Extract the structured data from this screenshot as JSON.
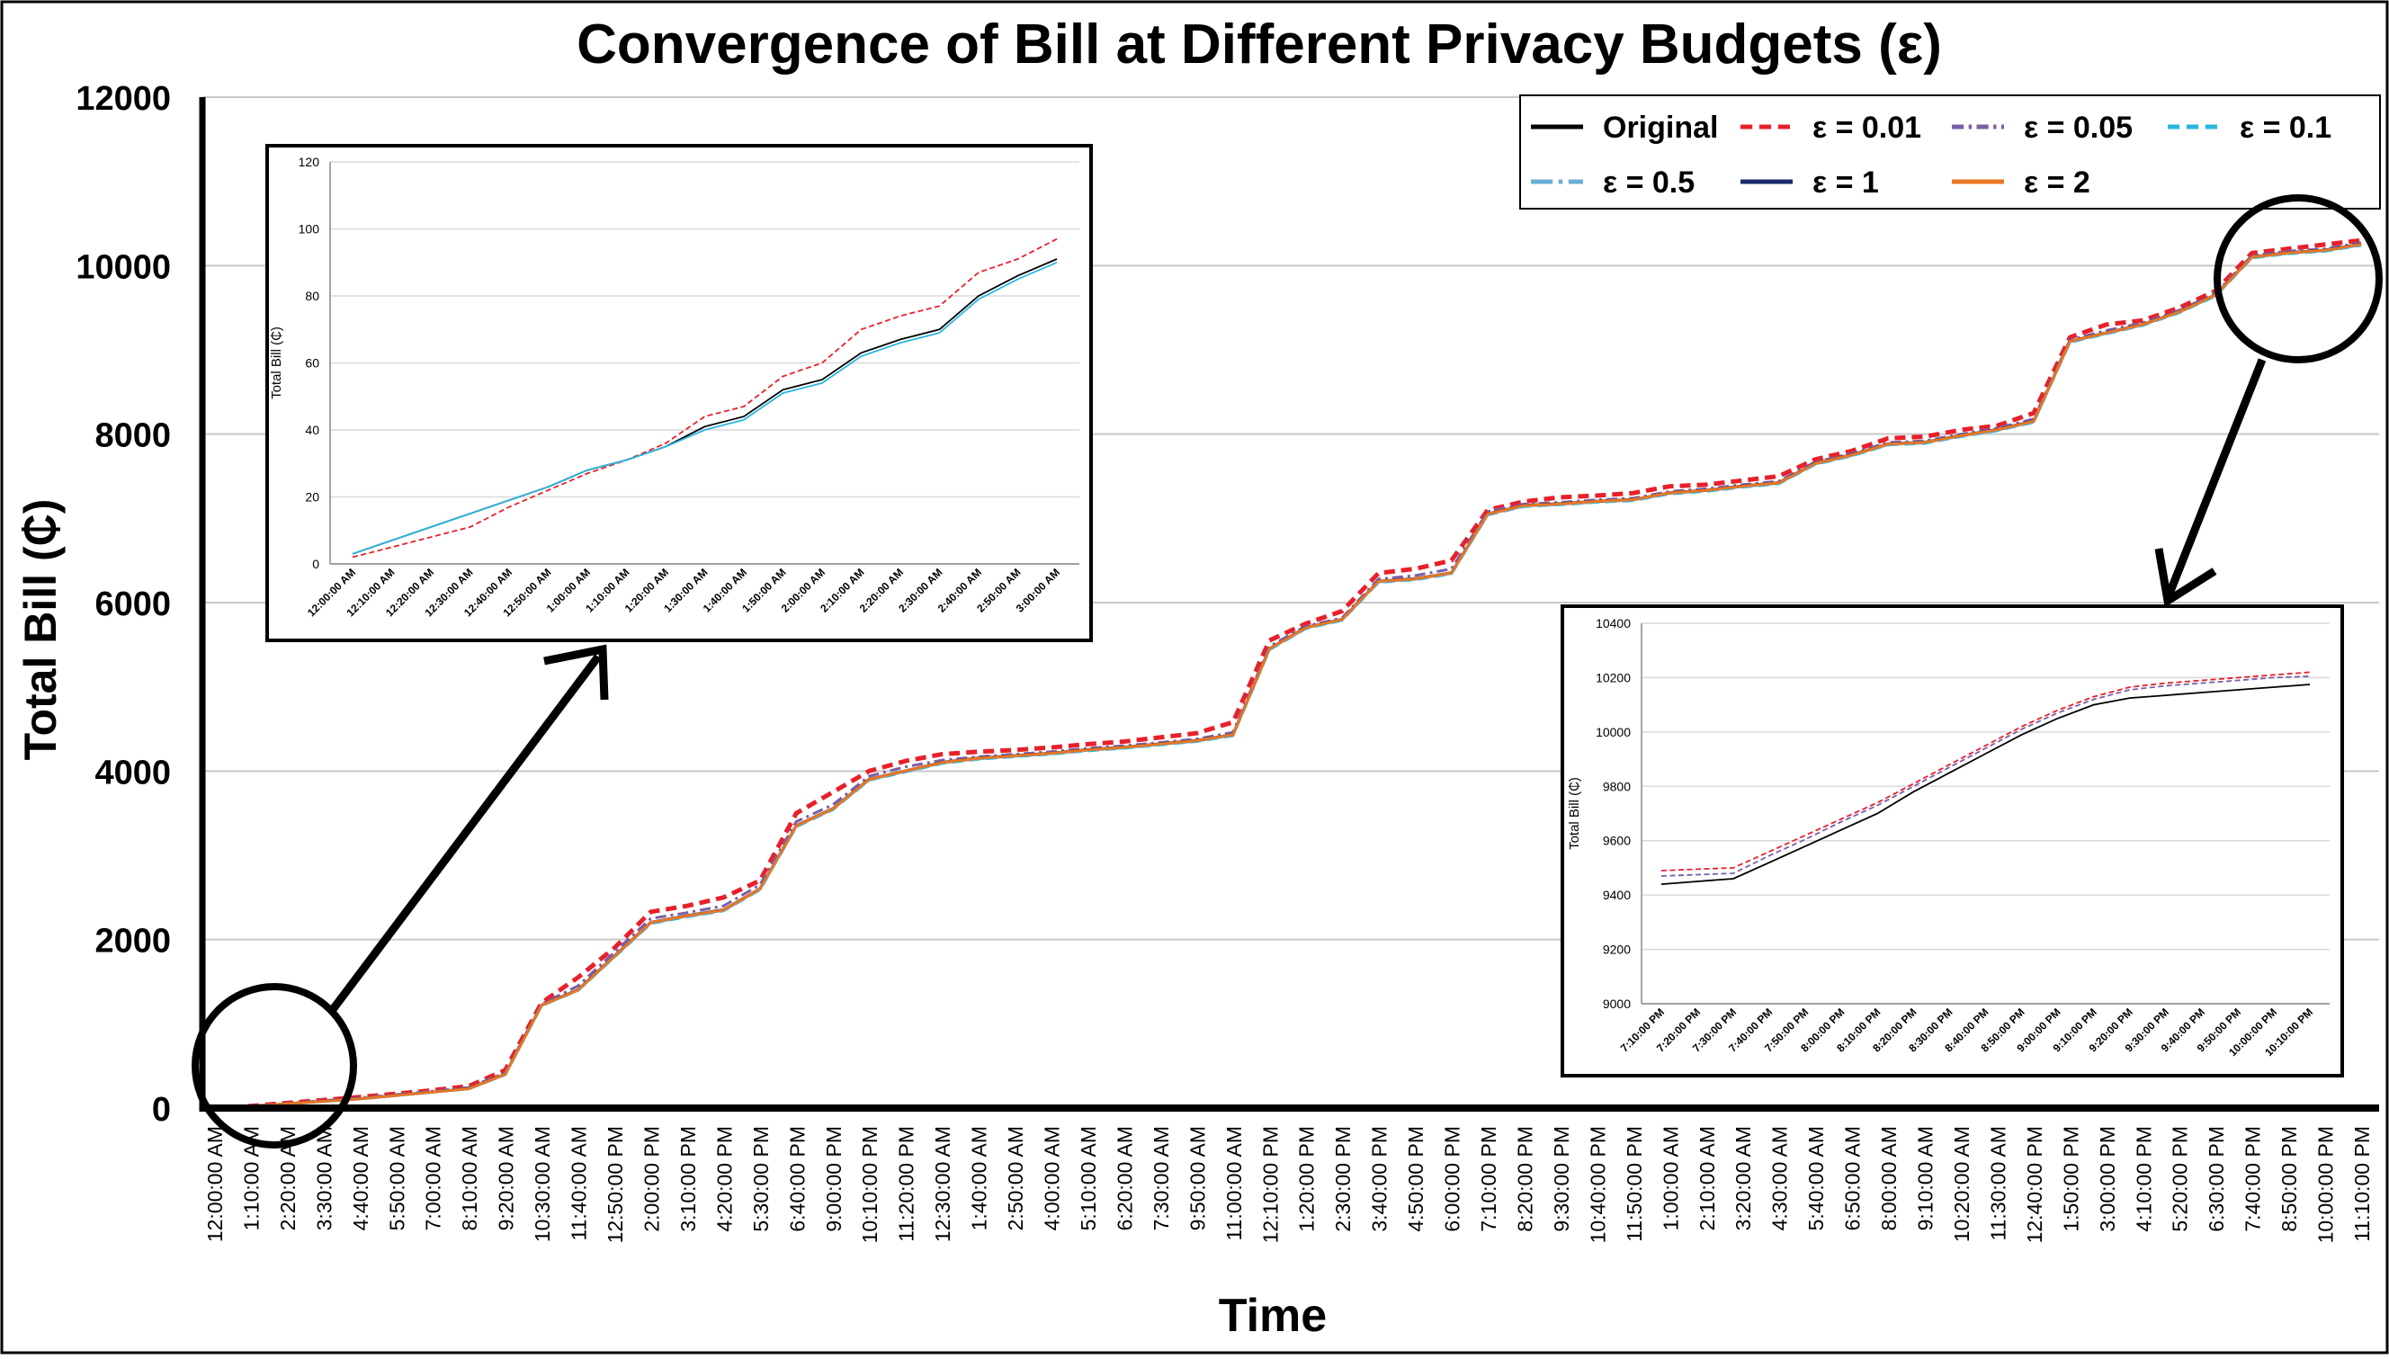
{
  "chart_data": {
    "type": "line",
    "title": "Convergence of Bill at Different Privacy Budgets (ε)",
    "xlabel": "Time",
    "ylabel": "Total Bill (₵)",
    "ylim": [
      0,
      12000
    ],
    "yticks": [
      0,
      2000,
      4000,
      6000,
      8000,
      10000,
      12000
    ],
    "grid": true,
    "legend_position": "top-right",
    "x": [
      "12:00:00 AM",
      "1:10:00 AM",
      "2:20:00 AM",
      "3:30:00 AM",
      "4:40:00 AM",
      "5:50:00 AM",
      "7:00:00 AM",
      "8:10:00 AM",
      "9:20:00 AM",
      "10:30:00 AM",
      "11:40:00 AM",
      "12:50:00 PM",
      "2:00:00 PM",
      "3:10:00 PM",
      "4:20:00 PM",
      "5:30:00 PM",
      "6:40:00 PM",
      "9:00:00 PM",
      "10:10:00 PM",
      "11:20:00 PM",
      "12:30:00 AM",
      "1:40:00 AM",
      "2:50:00 AM",
      "4:00:00 AM",
      "5:10:00 AM",
      "6:20:00 AM",
      "7:30:00 AM",
      "9:50:00 AM",
      "11:00:00 AM",
      "12:10:00 PM",
      "1:20:00 PM",
      "2:30:00 PM",
      "3:40:00 PM",
      "4:50:00 PM",
      "6:00:00 PM",
      "7:10:00 PM",
      "8:20:00 PM",
      "9:30:00 PM",
      "10:40:00 PM",
      "11:50:00 PM",
      "1:00:00 AM",
      "2:10:00 AM",
      "3:20:00 AM",
      "4:30:00 AM",
      "5:40:00 AM",
      "6:50:00 AM",
      "8:00:00 AM",
      "9:10:00 AM",
      "10:20:00 AM",
      "11:30:00 AM",
      "12:40:00 PM",
      "1:50:00 PM",
      "3:00:00 PM",
      "4:10:00 PM",
      "5:20:00 PM",
      "6:30:00 PM",
      "7:40:00 PM",
      "8:50:00 PM",
      "10:00:00 PM",
      "11:10:00 PM"
    ],
    "series": [
      {
        "name": "Original",
        "color": "#000000",
        "dash": "solid",
        "values": [
          0,
          20,
          50,
          80,
          110,
          150,
          190,
          230,
          400,
          1220,
          1400,
          1800,
          2200,
          2280,
          2350,
          2600,
          3350,
          3550,
          3900,
          4000,
          4100,
          4150,
          4180,
          4210,
          4250,
          4280,
          4320,
          4360,
          4430,
          5450,
          5700,
          5800,
          6250,
          6280,
          6350,
          7050,
          7150,
          7170,
          7200,
          7220,
          7300,
          7330,
          7380,
          7420,
          7650,
          7750,
          7880,
          7900,
          7980,
          8050,
          8150,
          9100,
          9200,
          9300,
          9450,
          9650,
          10100,
          10150,
          10180,
          10250
        ]
      },
      {
        "name": "ε = 0.01",
        "color": "#e8202a",
        "dash": "dashed",
        "values": [
          0,
          25,
          60,
          95,
          130,
          170,
          210,
          260,
          450,
          1250,
          1550,
          1900,
          2330,
          2400,
          2500,
          2700,
          3500,
          3750,
          4000,
          4120,
          4200,
          4230,
          4250,
          4280,
          4320,
          4350,
          4400,
          4450,
          4580,
          5550,
          5750,
          5900,
          6350,
          6400,
          6500,
          7100,
          7200,
          7250,
          7270,
          7300,
          7380,
          7400,
          7450,
          7500,
          7700,
          7800,
          7950,
          7970,
          8050,
          8100,
          8250,
          9150,
          9300,
          9350,
          9500,
          9700,
          10150,
          10200,
          10250,
          10300
        ]
      },
      {
        "name": "ε = 0.05",
        "color": "#7b5ea7",
        "dash": "dashdot",
        "values": [
          0,
          22,
          55,
          88,
          120,
          160,
          200,
          245,
          420,
          1235,
          1450,
          1850,
          2250,
          2320,
          2400,
          2650,
          3400,
          3600,
          3940,
          4050,
          4130,
          4170,
          4200,
          4230,
          4270,
          4300,
          4340,
          4380,
          4460,
          5480,
          5720,
          5820,
          6280,
          6320,
          6400,
          7080,
          7170,
          7190,
          7220,
          7240,
          7320,
          7350,
          7400,
          7440,
          7670,
          7770,
          7900,
          7920,
          8000,
          8070,
          8180,
          9120,
          9230,
          9320,
          9470,
          9670,
          10120,
          10170,
          10200,
          10270
        ]
      },
      {
        "name": "ε = 0.1",
        "color": "#2bb6e0",
        "dash": "dashed",
        "values": [
          0,
          18,
          48,
          78,
          108,
          148,
          188,
          228,
          395,
          1215,
          1395,
          1790,
          2190,
          2270,
          2340,
          2590,
          3340,
          3540,
          3890,
          3990,
          4090,
          4140,
          4170,
          4200,
          4240,
          4270,
          4310,
          4350,
          4420,
          5440,
          5690,
          5790,
          6240,
          6270,
          6340,
          7040,
          7140,
          7160,
          7190,
          7210,
          7290,
          7320,
          7370,
          7410,
          7640,
          7740,
          7870,
          7890,
          7970,
          8040,
          8140,
          9090,
          9190,
          9290,
          9440,
          9640,
          10090,
          10140,
          10170,
          10240
        ]
      },
      {
        "name": "ε = 0.5",
        "color": "#6aaed6",
        "dash": "longdashdot",
        "values": [
          0,
          19,
          49,
          79,
          109,
          149,
          189,
          229,
          398,
          1218,
          1398,
          1795,
          2195,
          2275,
          2345,
          2595,
          3345,
          3545,
          3895,
          3995,
          4095,
          4145,
          4175,
          4205,
          4245,
          4275,
          4315,
          4355,
          4425,
          5445,
          5695,
          5795,
          6245,
          6275,
          6345,
          7045,
          7145,
          7165,
          7195,
          7215,
          7295,
          7325,
          7375,
          7415,
          7645,
          7745,
          7875,
          7895,
          7975,
          8045,
          8145,
          9095,
          9195,
          9295,
          9445,
          9645,
          10095,
          10145,
          10175,
          10245
        ]
      },
      {
        "name": "ε = 1",
        "color": "#1a2a6c",
        "dash": "solid",
        "values": [
          0,
          21,
          51,
          81,
          111,
          151,
          191,
          232,
          405,
          1222,
          1405,
          1805,
          2205,
          2285,
          2355,
          2605,
          3355,
          3555,
          3905,
          4005,
          4105,
          4155,
          4185,
          4215,
          4255,
          4285,
          4325,
          4365,
          4435,
          5455,
          5705,
          5805,
          6255,
          6285,
          6355,
          7055,
          7155,
          7175,
          7205,
          7225,
          7305,
          7335,
          7385,
          7425,
          7655,
          7755,
          7885,
          7905,
          7985,
          8055,
          8155,
          9105,
          9205,
          9305,
          9455,
          9655,
          10105,
          10155,
          10185,
          10255
        ]
      },
      {
        "name": "ε = 2",
        "color": "#e87722",
        "dash": "solid",
        "values": [
          0,
          20,
          50,
          80,
          110,
          150,
          190,
          230,
          402,
          1221,
          1402,
          1802,
          2202,
          2282,
          2352,
          2602,
          3352,
          3552,
          3902,
          4002,
          4102,
          4152,
          4182,
          4212,
          4252,
          4282,
          4322,
          4362,
          4432,
          5452,
          5702,
          5802,
          6252,
          6282,
          6352,
          7052,
          7152,
          7172,
          7202,
          7222,
          7302,
          7332,
          7382,
          7422,
          7652,
          7752,
          7882,
          7902,
          7982,
          8052,
          8152,
          9102,
          9202,
          9302,
          9452,
          9652,
          10102,
          10152,
          10182,
          10252
        ]
      }
    ],
    "insets": [
      {
        "name": "inset-early",
        "ylabel": "Total Bill (₵)",
        "ylim": [
          0,
          120
        ],
        "yticks": [
          0,
          20,
          40,
          60,
          80,
          100,
          120
        ],
        "x": [
          "12:00:00 AM",
          "12:10:00 AM",
          "12:20:00 AM",
          "12:30:00 AM",
          "12:40:00 AM",
          "12:50:00 AM",
          "1:00:00 AM",
          "1:10:00 AM",
          "1:20:00 AM",
          "1:30:00 AM",
          "1:40:00 AM",
          "1:50:00 AM",
          "2:00:00 AM",
          "2:10:00 AM",
          "2:20:00 AM",
          "2:30:00 AM",
          "2:40:00 AM",
          "2:50:00 AM",
          "3:00:00 AM"
        ],
        "series": [
          {
            "name": "Original",
            "color": "#000000",
            "dash": "solid",
            "values": [
              3,
              7,
              11,
              15,
              19,
              23,
              28,
              31,
              35,
              41,
              44,
              52,
              55,
              63,
              67,
              70,
              80,
              86,
              91
            ]
          },
          {
            "name": "ε = 0.01",
            "color": "#e8202a",
            "dash": "dashed",
            "values": [
              2,
              5,
              8,
              11,
              17,
              22,
              27,
              31,
              36,
              44,
              47,
              56,
              60,
              70,
              74,
              77,
              87,
              91,
              97
            ]
          },
          {
            "name": "ε = 0.1",
            "color": "#2bb6e0",
            "dash": "solid",
            "values": [
              3,
              7,
              11,
              15,
              19,
              23,
              28,
              31,
              35,
              40,
              43,
              51,
              54,
              62,
              66,
              69,
              79,
              85,
              90
            ]
          }
        ]
      },
      {
        "name": "inset-late",
        "ylabel": "Total Bill (₵)",
        "ylim": [
          9000,
          10400
        ],
        "yticks": [
          9000,
          9200,
          9400,
          9600,
          9800,
          10000,
          10200,
          10400
        ],
        "x": [
          "7:10:00 PM",
          "7:20:00 PM",
          "7:30:00 PM",
          "7:40:00 PM",
          "7:50:00 PM",
          "8:00:00 PM",
          "8:10:00 PM",
          "8:20:00 PM",
          "8:30:00 PM",
          "8:40:00 PM",
          "8:50:00 PM",
          "9:00:00 PM",
          "9:10:00 PM",
          "9:20:00 PM",
          "9:30:00 PM",
          "9:40:00 PM",
          "9:50:00 PM",
          "10:00:00 PM",
          "10:10:00 PM"
        ],
        "series": [
          {
            "name": "Original",
            "color": "#000000",
            "dash": "solid",
            "values": [
              9440,
              9450,
              9460,
              9520,
              9580,
              9640,
              9700,
              9780,
              9850,
              9920,
              9990,
              10050,
              10100,
              10125,
              10135,
              10145,
              10155,
              10165,
              10175
            ]
          },
          {
            "name": "ε = 0.01",
            "color": "#e8202a",
            "dash": "dashed",
            "values": [
              9490,
              9495,
              9500,
              9560,
              9620,
              9680,
              9740,
              9810,
              9880,
              9950,
              10020,
              10080,
              10130,
              10165,
              10180,
              10190,
              10200,
              10210,
              10220
            ]
          },
          {
            "name": "ε = 0.05",
            "color": "#7b5ea7",
            "dash": "dashed",
            "values": [
              9470,
              9475,
              9480,
              9545,
              9605,
              9670,
              9730,
              9800,
              9870,
              9940,
              10010,
              10070,
              10120,
              10155,
              10170,
              10180,
              10190,
              10200,
              10205
            ]
          }
        ]
      }
    ]
  }
}
